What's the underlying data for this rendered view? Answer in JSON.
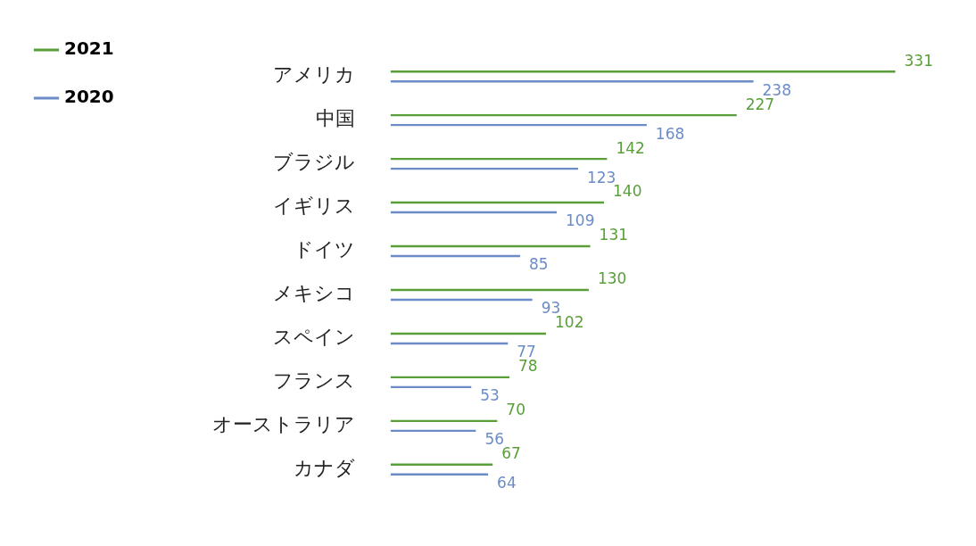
{
  "chart_data": {
    "type": "bar",
    "orientation": "horizontal",
    "categories": [
      "アメリカ",
      "中国",
      "ブラジル",
      "イギリス",
      "ドイツ",
      "メキシコ",
      "スペイン",
      "フランス",
      "オーストラリア",
      "カナダ"
    ],
    "series": [
      {
        "name": "2021",
        "color": "#5a9e3a",
        "values": [
          331,
          227,
          142,
          140,
          131,
          130,
          102,
          78,
          70,
          67
        ]
      },
      {
        "name": "2020",
        "color": "#6b8cc7",
        "values": [
          238,
          168,
          123,
          109,
          85,
          93,
          77,
          53,
          56,
          64
        ]
      }
    ],
    "data_labels": true,
    "legend": "top left",
    "grid": false,
    "tick_labels": "y"
  }
}
